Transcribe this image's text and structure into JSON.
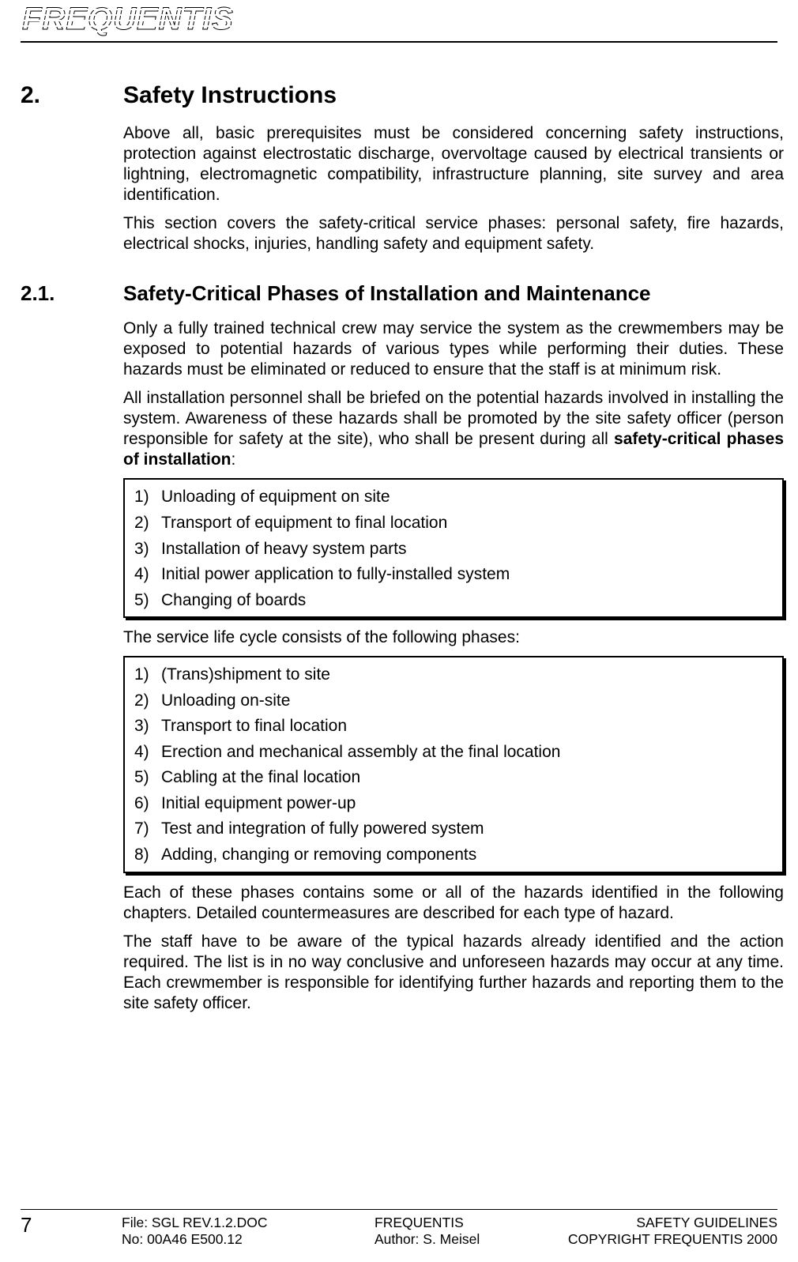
{
  "logo": {
    "text": "FREQUENTIS"
  },
  "section": {
    "num": "2.",
    "title": "Safety Instructions",
    "p1": "Above all, basic prerequisites must be considered concerning safety instructions, protection against electrostatic discharge, overvoltage caused by electrical transients or lightning, electromagnetic compatibility, infrastructure planning, site survey and area identification.",
    "p2": "This section covers the safety-critical service phases: personal safety, fire hazards, electrical shocks, injuries, handling safety and equipment safety."
  },
  "subsection": {
    "num": "2.1.",
    "title": "Safety-Critical Phases of Installation and Maintenance",
    "p1": "Only a fully trained technical crew may service the system as the crewmembers may be exposed to potential hazards of various types while performing their duties. These hazards must be eliminated or reduced to ensure that the staff is at minimum risk.",
    "p2_pre": "All installation personnel shall be briefed on the potential hazards involved in installing the system. Awareness of these hazards shall be promoted by the site safety officer (person responsible for safety at the site), who shall be present during all ",
    "p2_bold": "safety-critical phases of installation",
    "p2_post": ":",
    "box1": [
      {
        "n": "1)",
        "t": "Unloading of equipment on site"
      },
      {
        "n": "2)",
        "t": "Transport of equipment to final location"
      },
      {
        "n": "3)",
        "t": "Installation of heavy system parts"
      },
      {
        "n": "4)",
        "t": "Initial power application to fully-installed system"
      },
      {
        "n": "5)",
        "t": "Changing of boards"
      }
    ],
    "p3": "The service life cycle consists of the following phases:",
    "box2": [
      {
        "n": "1)",
        "t": "(Trans)shipment to site"
      },
      {
        "n": "2)",
        "t": "Unloading on-site"
      },
      {
        "n": "3)",
        "t": "Transport to final location"
      },
      {
        "n": "4)",
        "t": "Erection and mechanical assembly at the final location"
      },
      {
        "n": "5)",
        "t": "Cabling at the final location"
      },
      {
        "n": "6)",
        "t": "Initial equipment power-up"
      },
      {
        "n": "7)",
        "t": "Test and integration of fully powered system"
      },
      {
        "n": "8)",
        "t": "Adding, changing or removing components"
      }
    ],
    "p4": "Each of these phases contains some or all of the hazards identified in the following chapters. Detailed countermeasures are described for each type of hazard.",
    "p5": "The staff have to be aware of the typical hazards already identified and the action required. The list is in no way conclusive and unforeseen hazards may occur at any time. Each crewmember is responsible for identifying further hazards and reporting them to the site safety officer."
  },
  "footer": {
    "page": "7",
    "file": "File: SGL REV.1.2.DOC",
    "no": "No: 00A46 E500.12",
    "center1": "FREQUENTIS",
    "center2": "Author: S. Meisel",
    "right1": "SAFETY GUIDELINES",
    "right2": "COPYRIGHT FREQUENTIS 2000"
  }
}
